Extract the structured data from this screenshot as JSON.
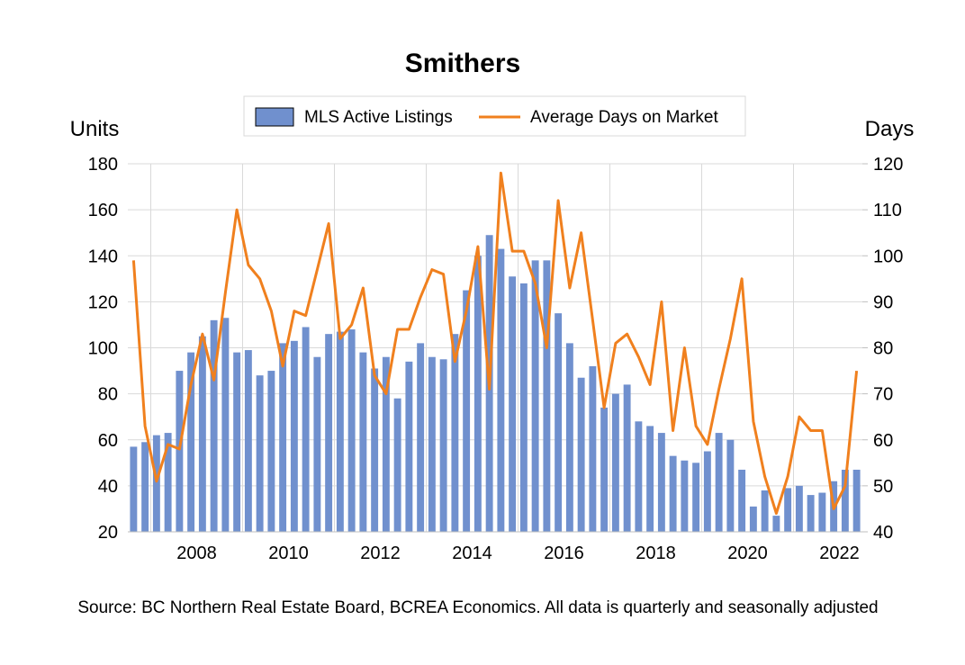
{
  "chart_data": {
    "type": "bar",
    "title": "Smithers",
    "source": "Source: BC Northern Real Estate Board, BCREA Economics. All data is quarterly and seasonally adjusted",
    "y_left_label": "Units",
    "y_right_label": "Days",
    "y_left_range": [
      20,
      180
    ],
    "y_left_ticks": [
      "20",
      "40",
      "60",
      "80",
      "100",
      "120",
      "140",
      "160",
      "180"
    ],
    "y_right_range": [
      40,
      120
    ],
    "y_right_ticks": [
      "40",
      "50",
      "60",
      "70",
      "80",
      "90",
      "100",
      "110",
      "120"
    ],
    "x_tick_labels": [
      "2008",
      "2010",
      "2012",
      "2014",
      "2016",
      "2018",
      "2020",
      "2022"
    ],
    "grid": true,
    "legend_position": "top-center",
    "start_quarter": "2006 Q3",
    "colors": {
      "bars": "#7090CE",
      "line": "#F0801E",
      "grid": "#D9D9D9"
    },
    "series": [
      {
        "name": "MLS Active Listings",
        "type": "bar",
        "axis": "left",
        "values": [
          57,
          59,
          62,
          63,
          90,
          98,
          105,
          112,
          113,
          98,
          99,
          88,
          90,
          102,
          103,
          109,
          96,
          106,
          107,
          108,
          98,
          91,
          96,
          78,
          94,
          102,
          96,
          95,
          106,
          125,
          140,
          149,
          143,
          131,
          128,
          138,
          138,
          115,
          102,
          87,
          92,
          74,
          80,
          84,
          68,
          66,
          63,
          53,
          51,
          50,
          55,
          63,
          60,
          47,
          31,
          38,
          27,
          39,
          40,
          36,
          37,
          42,
          47,
          47
        ]
      },
      {
        "name": "Average Days on Market",
        "type": "line",
        "axis": "right",
        "values": [
          99,
          63,
          51,
          59,
          58,
          72,
          83,
          73,
          92,
          110,
          98,
          95,
          88,
          76,
          88,
          87,
          97,
          107,
          82,
          85,
          93,
          74,
          70,
          84,
          84,
          91,
          97,
          96,
          77,
          88,
          102,
          71,
          118,
          101,
          101,
          94,
          80,
          112,
          93,
          105,
          86,
          67,
          81,
          83,
          78,
          72,
          90,
          62,
          80,
          63,
          59,
          71,
          82,
          95,
          64,
          52,
          44,
          52,
          65,
          62,
          62,
          45,
          50,
          75
        ]
      }
    ]
  }
}
